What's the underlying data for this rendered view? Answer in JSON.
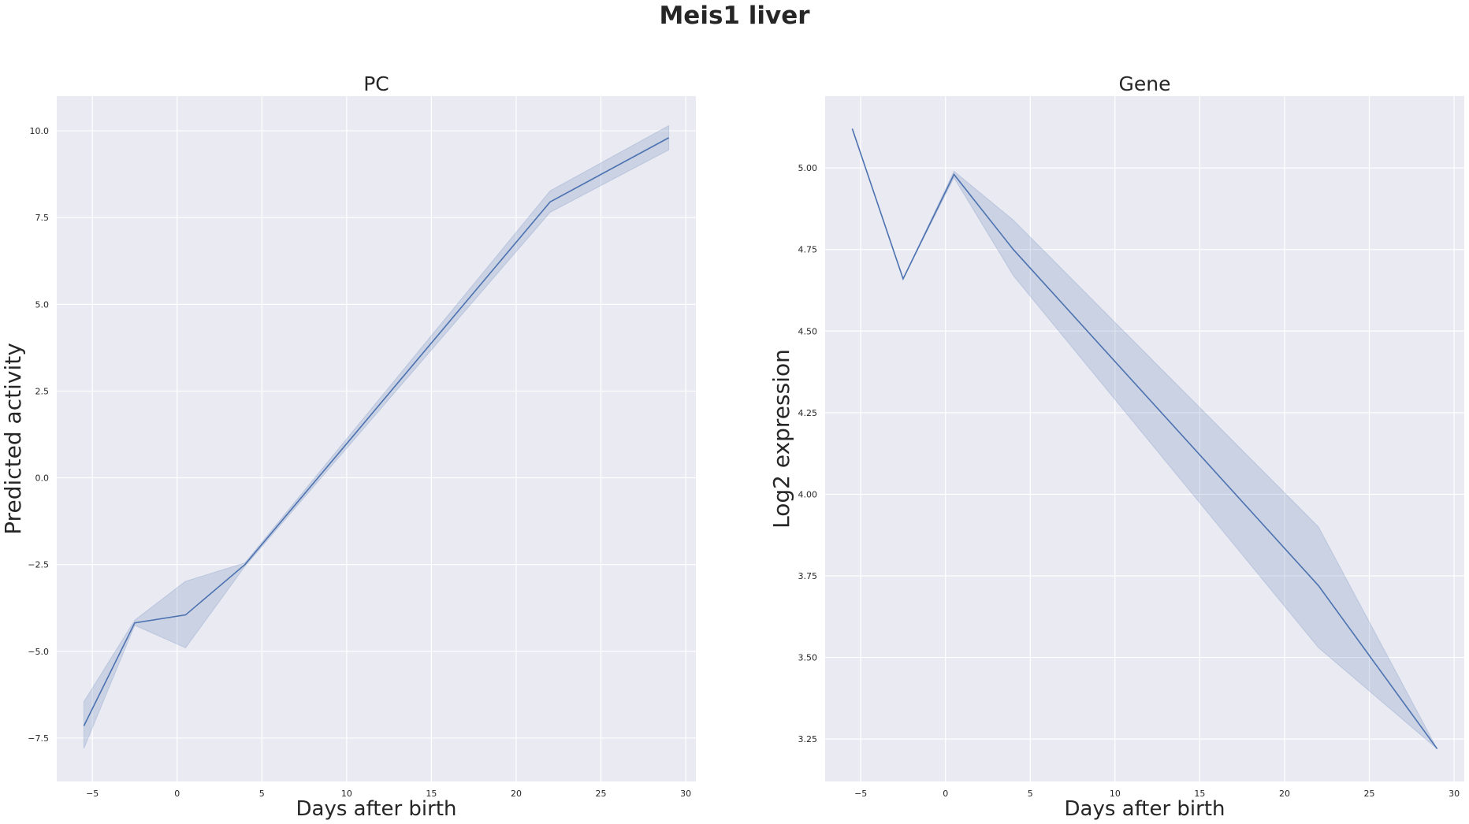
{
  "figure": {
    "suptitle": "Meis1 liver"
  },
  "colors": {
    "plot_background": "#EAEAF2",
    "grid": "#FFFFFF",
    "line": "#4C72B0",
    "band": "#4C72B0"
  },
  "chart_data": [
    {
      "type": "line",
      "title": "PC",
      "xlabel": "Days after birth",
      "ylabel": "Predicted activity",
      "xlim": [
        -7.1,
        30.6
      ],
      "ylim": [
        -8.75,
        11.0
      ],
      "xticks": [
        -5,
        0,
        5,
        10,
        15,
        20,
        25,
        30
      ],
      "yticks": [
        -7.5,
        -5.0,
        -2.5,
        0.0,
        2.5,
        5.0,
        7.5,
        10.0
      ],
      "xtick_labels": [
        "−5",
        "0",
        "5",
        "10",
        "15",
        "20",
        "25",
        "30"
      ],
      "ytick_labels": [
        "−7.5",
        "−5.0",
        "−2.5",
        "0.0",
        "2.5",
        "5.0",
        "7.5",
        "10.0"
      ],
      "grid": true,
      "series": [
        {
          "x": [
            -5.5,
            -2.5,
            0.5,
            4,
            22,
            29
          ],
          "y": [
            -7.15,
            -4.18,
            -3.95,
            -2.5,
            7.95,
            9.8
          ],
          "ci_low": [
            -7.8,
            -4.25,
            -4.9,
            -2.55,
            7.65,
            9.45
          ],
          "ci_high": [
            -6.45,
            -4.1,
            -2.98,
            -2.45,
            8.27,
            10.15
          ]
        }
      ]
    },
    {
      "type": "line",
      "title": "Gene",
      "xlabel": "Days after birth",
      "ylabel": "Log2 expression",
      "xlim": [
        -7.1,
        30.6
      ],
      "ylim": [
        3.12,
        5.22
      ],
      "xticks": [
        -5,
        0,
        5,
        10,
        15,
        20,
        25,
        30
      ],
      "yticks": [
        3.25,
        3.5,
        3.75,
        4.0,
        4.25,
        4.5,
        4.75,
        5.0
      ],
      "xtick_labels": [
        "−5",
        "0",
        "5",
        "10",
        "15",
        "20",
        "25",
        "30"
      ],
      "ytick_labels": [
        "3.25",
        "3.50",
        "3.75",
        "4.00",
        "4.25",
        "4.50",
        "4.75",
        "5.00"
      ],
      "grid": true,
      "series": [
        {
          "x": [
            -5.5,
            -2.5,
            0.5,
            4,
            22,
            29
          ],
          "y": [
            5.12,
            4.66,
            4.98,
            4.75,
            3.72,
            3.22
          ],
          "ci_low": [
            5.12,
            4.66,
            4.97,
            4.67,
            3.53,
            3.22
          ],
          "ci_high": [
            5.12,
            4.66,
            4.99,
            4.84,
            3.9,
            3.22
          ]
        }
      ]
    }
  ]
}
